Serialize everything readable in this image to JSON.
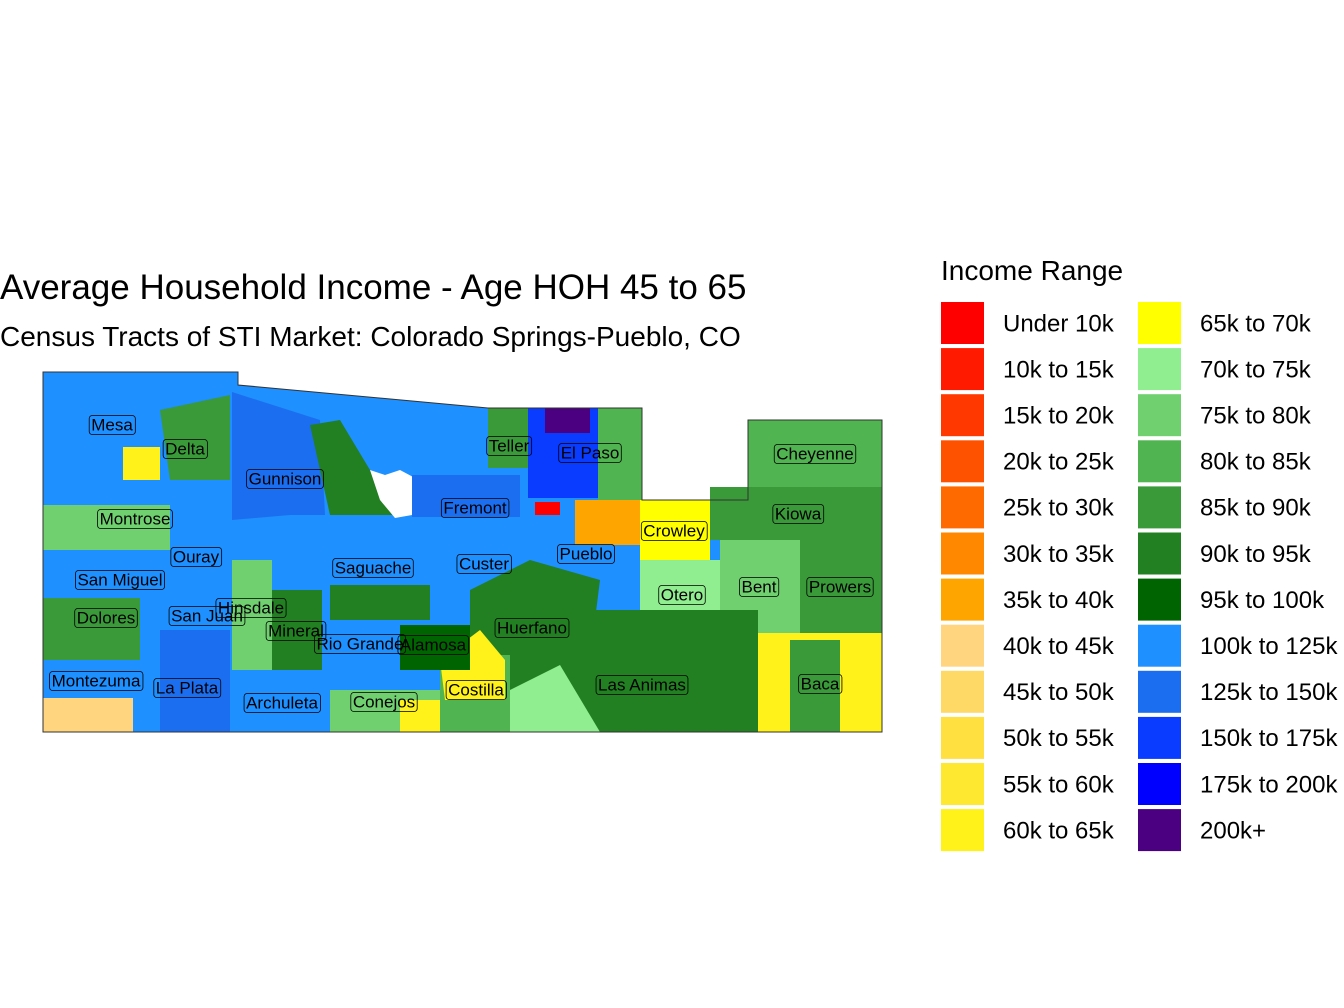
{
  "title": "Average Household Income - Age HOH 45 to 65",
  "subtitle": "Census Tracts of STI Market: Colorado Springs-Pueblo, CO",
  "legend": {
    "title": "Income Range",
    "items": [
      {
        "label": "Under 10k",
        "color": "#FF0000"
      },
      {
        "label": "10k to 15k",
        "color": "#FF1A00"
      },
      {
        "label": "15k to 20k",
        "color": "#FF3800"
      },
      {
        "label": "20k to 25k",
        "color": "#FF5200"
      },
      {
        "label": "25k to 30k",
        "color": "#FF6A00"
      },
      {
        "label": "30k to 35k",
        "color": "#FF8800"
      },
      {
        "label": "35k to 40k",
        "color": "#FFA500"
      },
      {
        "label": "40k to 45k",
        "color": "#FFD580"
      },
      {
        "label": "45k to 50k",
        "color": "#FFD966"
      },
      {
        "label": "50k to 55k",
        "color": "#FFE040"
      },
      {
        "label": "55k to 60k",
        "color": "#FFE830"
      },
      {
        "label": "60k to 65k",
        "color": "#FFF21A"
      },
      {
        "label": "65k to 70k",
        "color": "#FFFF00"
      },
      {
        "label": "70k to 75k",
        "color": "#90EE90"
      },
      {
        "label": "75k to 80k",
        "color": "#70D070"
      },
      {
        "label": "80k to 85k",
        "color": "#50B450"
      },
      {
        "label": "85k to 90k",
        "color": "#3A9A3A"
      },
      {
        "label": "90k to 95k",
        "color": "#228022"
      },
      {
        "label": "95k to 100k",
        "color": "#006400"
      },
      {
        "label": "100k to 125k",
        "color": "#1E90FF"
      },
      {
        "label": "125k to 150k",
        "color": "#1C6EF0"
      },
      {
        "label": "150k to 175k",
        "color": "#0A3CFF"
      },
      {
        "label": "175k to 200k",
        "color": "#0000FF"
      },
      {
        "label": "200k+",
        "color": "#4B0082"
      }
    ]
  },
  "counties": [
    {
      "name": "Mesa"
    },
    {
      "name": "Delta"
    },
    {
      "name": "Gunnison"
    },
    {
      "name": "Teller"
    },
    {
      "name": "El Paso"
    },
    {
      "name": "Cheyenne"
    },
    {
      "name": "Fremont"
    },
    {
      "name": "Montrose"
    },
    {
      "name": "Kiowa"
    },
    {
      "name": "Crowley"
    },
    {
      "name": "Ouray"
    },
    {
      "name": "Custer"
    },
    {
      "name": "Saguache"
    },
    {
      "name": "Pueblo"
    },
    {
      "name": "San Miguel"
    },
    {
      "name": "Bent"
    },
    {
      "name": "Prowers"
    },
    {
      "name": "Otero"
    },
    {
      "name": "Hinsdale"
    },
    {
      "name": "Dolores"
    },
    {
      "name": "San Juan"
    },
    {
      "name": "Mineral"
    },
    {
      "name": "Huerfano"
    },
    {
      "name": "Rio Grande"
    },
    {
      "name": "Alamosa"
    },
    {
      "name": "Montezuma"
    },
    {
      "name": "La Plata"
    },
    {
      "name": "Las Animas"
    },
    {
      "name": "Baca"
    },
    {
      "name": "Archuleta"
    },
    {
      "name": "Conejos"
    },
    {
      "name": "Costilla"
    }
  ]
}
